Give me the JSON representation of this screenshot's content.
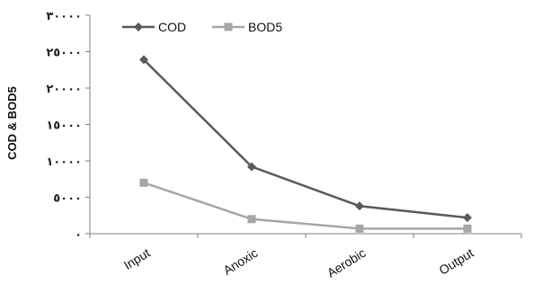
{
  "chart_data": {
    "type": "line",
    "categories": [
      "Input",
      "Anoxic",
      "Aerobic",
      "Output"
    ],
    "series": [
      {
        "name": "COD",
        "values": [
          23900,
          9200,
          3800,
          2200
        ],
        "color": "#595959",
        "marker": "diamond"
      },
      {
        "name": "BOD5",
        "values": [
          7000,
          2000,
          700,
          700
        ],
        "color": "#a6a6a6",
        "marker": "square"
      }
    ],
    "ylabel": "COD & BOD5",
    "xlabel": "",
    "title": "",
    "ylim": [
      0,
      30000
    ],
    "yticks": [
      0,
      5000,
      10000,
      15000,
      20000,
      25000,
      30000
    ],
    "ytick_labels": [
      "٠",
      "٥٠٠٠",
      "١٠٠٠٠",
      "١٥٠٠٠",
      "٢٠٠٠٠",
      "٢٥٠٠٠",
      "٣٠٠٠٠"
    ],
    "grid": false,
    "legend_position": "top-left"
  }
}
